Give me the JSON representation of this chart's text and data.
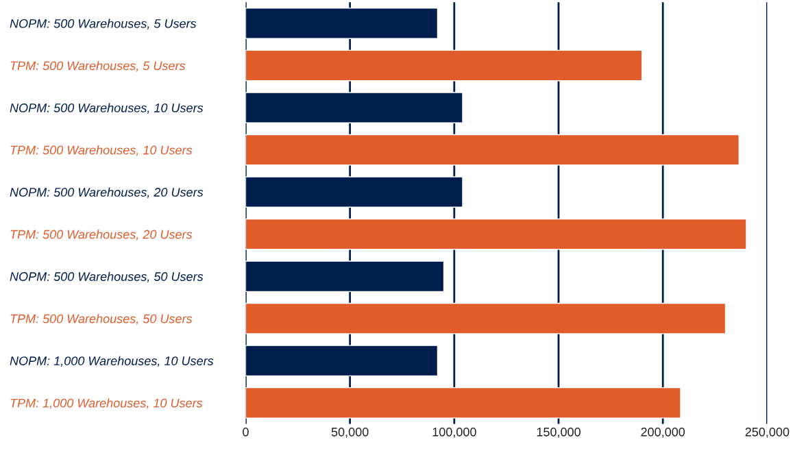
{
  "chart_data": {
    "type": "bar",
    "orientation": "horizontal",
    "categories": [
      "NOPM: 500 Warehouses, 5 Users",
      "TPM: 500 Warehouses, 5 Users",
      "NOPM: 500 Warehouses, 10 Users",
      "TPM: 500 Warehouses, 10 Users",
      "NOPM: 500 Warehouses, 20 Users",
      "TPM: 500 Warehouses, 20 Users",
      "NOPM: 500 Warehouses, 50 Users",
      "TPM: 500 Warehouses, 50 Users",
      "NOPM: 1,000 Warehouses, 10 Users",
      "TPM: 1,000 Warehouses, 10 Users"
    ],
    "values": [
      92000,
      190000,
      104000,
      236500,
      104000,
      240000,
      95000,
      230000,
      92000,
      208500
    ],
    "colors": [
      "#001e4b",
      "#e05c2a",
      "#001e4b",
      "#e05c2a",
      "#001e4b",
      "#e05c2a",
      "#001e4b",
      "#e05c2a",
      "#001e4b",
      "#e05c2a"
    ],
    "xlim": [
      0,
      250000
    ],
    "xticks": [
      {
        "value": 0,
        "label": "0"
      },
      {
        "value": 50000,
        "label": "50,000"
      },
      {
        "value": 100000,
        "label": "100,000"
      },
      {
        "value": 150000,
        "label": "150,000"
      },
      {
        "value": 200000,
        "label": "200,000"
      },
      {
        "value": 250000,
        "label": "250,000"
      }
    ],
    "grid": "x",
    "legend": false
  }
}
